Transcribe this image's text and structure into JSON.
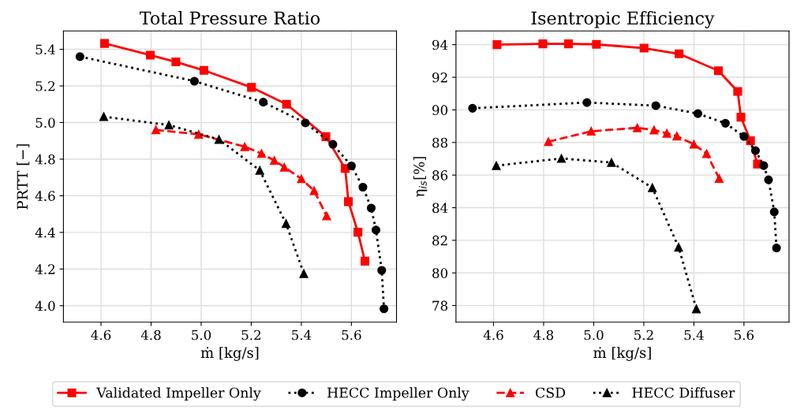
{
  "chart_data": [
    {
      "type": "line",
      "title": "Total Pressure Ratio",
      "xlabel": "ṁ [kg/s]",
      "ylabel": "PRTT [−]",
      "xlim": [
        4.45,
        5.78
      ],
      "xticks": [
        4.6,
        4.8,
        {
          "value": 5,
          "label": "5.0"
        },
        5.2,
        5.4,
        5.6
      ],
      "ylim": [
        3.91,
        5.5
      ],
      "yticks": [
        {
          "value": 4,
          "label": "4.0"
        },
        4.2,
        4.4,
        4.6,
        4.8,
        {
          "value": 5,
          "label": "5.0"
        },
        5.2,
        5.4
      ],
      "grid": true,
      "legend": "bottom",
      "series": [
        {
          "name": "Validated Impeller Only",
          "color": "#ff0000",
          "marker": "square",
          "line_style": "solid",
          "x": [
            4.614,
            4.797,
            4.899,
            5.011,
            5.201,
            5.341,
            5.498,
            5.575,
            5.588,
            5.626,
            5.654
          ],
          "values": [
            5.432,
            5.368,
            5.331,
            5.285,
            5.192,
            5.1,
            4.923,
            4.749,
            4.568,
            4.401,
            4.243
          ]
        },
        {
          "name": "HECC Impeller Only",
          "color": "#000000",
          "marker": "circle",
          "line_style": "dotted",
          "x": [
            4.516,
            4.973,
            5.248,
            5.416,
            5.526,
            5.6,
            5.646,
            5.679,
            5.698,
            5.721,
            5.73
          ],
          "values": [
            5.36,
            5.226,
            5.111,
            4.998,
            4.881,
            4.763,
            4.647,
            4.533,
            4.413,
            4.193,
            3.983
          ]
        },
        {
          "name": "CSD",
          "color": "#ff0000",
          "marker": "triangle",
          "line_style": "dashed",
          "x": [
            4.819,
            4.99,
            5.174,
            5.241,
            5.292,
            5.332,
            5.4,
            5.451,
            5.501
          ],
          "values": [
            4.96,
            4.936,
            4.868,
            4.831,
            4.793,
            4.756,
            4.693,
            4.628,
            4.49
          ]
        },
        {
          "name": "HECC Diffuser",
          "color": "#000000",
          "marker": "triangle",
          "line_style": "dotted",
          "x": [
            4.611,
            4.871,
            5.071,
            5.234,
            5.339,
            5.41
          ],
          "values": [
            5.032,
            4.986,
            4.908,
            4.739,
            4.448,
            4.175
          ]
        }
      ]
    },
    {
      "type": "line",
      "title": "Isentropic Efficiency",
      "xlabel": "ṁ [kg/s]",
      "ylabel": "η$_{is}$[%]",
      "xlim": [
        4.45,
        5.78
      ],
      "xticks": [
        4.6,
        4.8,
        {
          "value": 5,
          "label": "5.0"
        },
        5.2,
        5.4,
        5.6
      ],
      "ylim": [
        76.98,
        94.84
      ],
      "yticks": [
        78,
        80,
        82,
        84,
        86,
        88,
        90,
        92,
        94
      ],
      "grid": true,
      "legend": "bottom",
      "series": [
        {
          "name": "Validated Impeller Only",
          "color": "#ff0000",
          "marker": "square",
          "line_style": "solid",
          "x": [
            4.614,
            4.797,
            4.899,
            5.011,
            5.201,
            5.341,
            5.498,
            5.575,
            5.588,
            5.626,
            5.654
          ],
          "values": [
            94.0,
            94.05,
            94.05,
            94.02,
            93.79,
            93.44,
            92.4,
            91.13,
            89.55,
            88.11,
            86.68
          ]
        },
        {
          "name": "HECC Impeller Only",
          "color": "#000000",
          "marker": "circle",
          "line_style": "dotted",
          "x": [
            4.516,
            4.973,
            5.248,
            5.416,
            5.526,
            5.6,
            5.646,
            5.679,
            5.698,
            5.721,
            5.73
          ],
          "values": [
            90.1,
            90.45,
            90.26,
            89.77,
            89.18,
            88.37,
            87.5,
            86.58,
            85.71,
            83.74,
            81.53
          ]
        },
        {
          "name": "CSD",
          "color": "#ff0000",
          "marker": "triangle",
          "line_style": "dashed",
          "x": [
            4.819,
            4.99,
            5.174,
            5.241,
            5.292,
            5.332,
            5.4,
            5.451,
            5.501
          ],
          "values": [
            88.05,
            88.69,
            88.9,
            88.77,
            88.56,
            88.39,
            87.89,
            87.32,
            85.79
          ]
        },
        {
          "name": "HECC Diffuser",
          "color": "#000000",
          "marker": "triangle",
          "line_style": "dotted",
          "x": [
            4.611,
            4.871,
            5.071,
            5.234,
            5.339,
            5.41
          ],
          "values": [
            86.58,
            87.02,
            86.77,
            85.23,
            81.58,
            77.79
          ]
        }
      ]
    }
  ]
}
